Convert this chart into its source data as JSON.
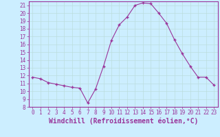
{
  "x": [
    0,
    1,
    2,
    3,
    4,
    5,
    6,
    7,
    8,
    9,
    10,
    11,
    12,
    13,
    14,
    15,
    16,
    17,
    18,
    19,
    20,
    21,
    22,
    23
  ],
  "y": [
    11.8,
    11.6,
    11.1,
    10.9,
    10.7,
    10.5,
    10.4,
    8.5,
    10.3,
    13.2,
    16.5,
    18.5,
    19.5,
    21.0,
    21.3,
    21.2,
    20.0,
    18.7,
    16.6,
    14.8,
    13.2,
    11.8,
    11.8,
    10.8
  ],
  "line_color": "#993399",
  "marker": "+",
  "marker_size": 3,
  "marker_edge_width": 1.0,
  "bg_color": "#cceeff",
  "grid_color": "#bbdddd",
  "xlabel": "Windchill (Refroidissement éolien,°C)",
  "xlabel_fontsize": 7,
  "tick_color": "#993399",
  "label_color": "#993399",
  "axis_color": "#993399",
  "xlim": [
    -0.5,
    23.5
  ],
  "ylim": [
    8,
    21.5
  ],
  "yticks": [
    8,
    9,
    10,
    11,
    12,
    13,
    14,
    15,
    16,
    17,
    18,
    19,
    20,
    21
  ],
  "xticks": [
    0,
    1,
    2,
    3,
    4,
    5,
    6,
    7,
    8,
    9,
    10,
    11,
    12,
    13,
    14,
    15,
    16,
    17,
    18,
    19,
    20,
    21,
    22,
    23
  ],
  "line_width": 0.8
}
